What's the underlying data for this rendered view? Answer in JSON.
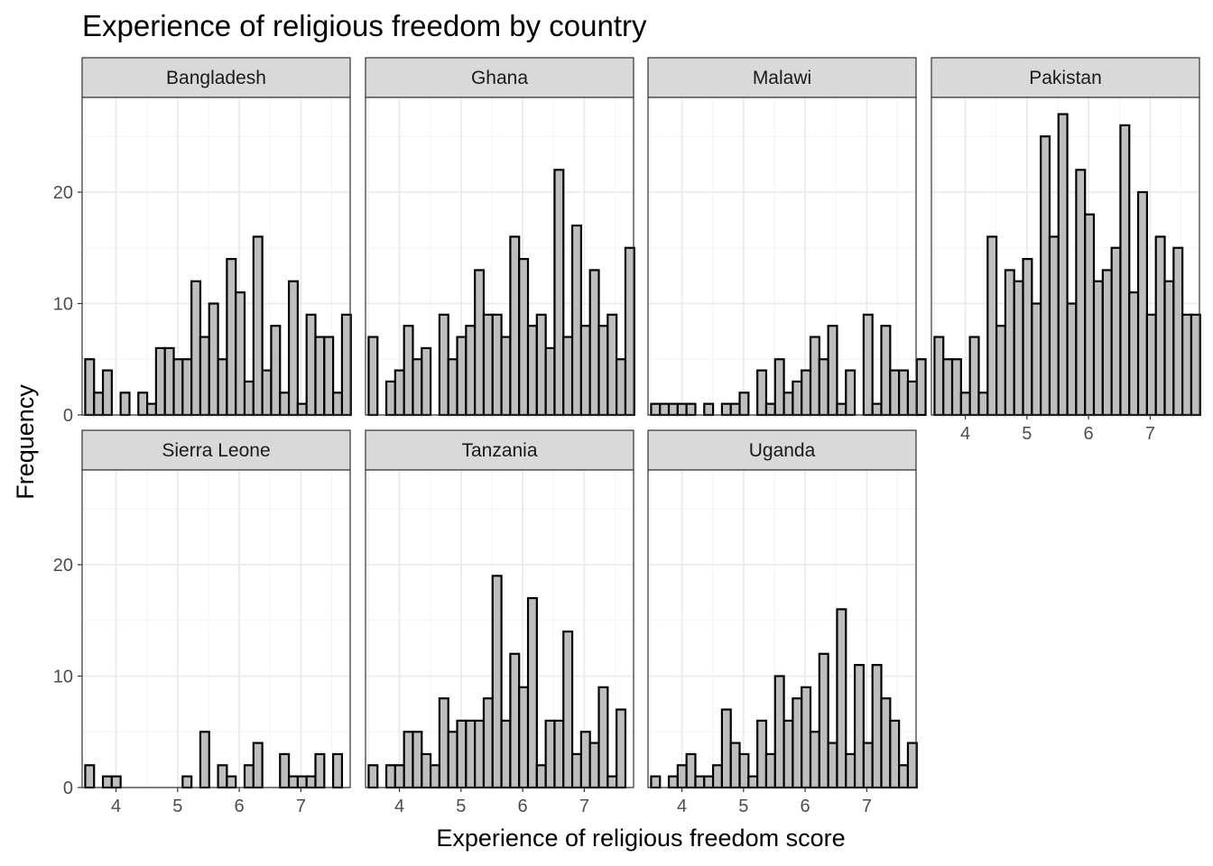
{
  "chart_data": {
    "type": "bar",
    "title": "Experience of religious freedom by country",
    "xlabel": "Experience of religious freedom score",
    "ylabel": "Frequency",
    "x_ticks": [
      "4",
      "5",
      "6",
      "7"
    ],
    "y_ticks": [
      "0",
      "10",
      "20"
    ],
    "xlim": [
      3.45,
      7.8
    ],
    "ylim": [
      0,
      28.5
    ],
    "bin_start": 3.5,
    "bin_width": 0.1437,
    "grid": true,
    "layout": "facet-wrap, 4 columns by 2 rows",
    "colors": {
      "bar_fill": "#bebebe",
      "bar_outline": "#000000",
      "strip_fill": "#d9d9d9"
    },
    "panels": [
      {
        "name": "Bangladesh",
        "values": [
          5,
          2,
          4,
          0,
          2,
          0,
          2,
          1,
          6,
          6,
          5,
          5,
          12,
          7,
          10,
          5,
          14,
          11,
          3,
          16,
          4,
          8,
          2,
          12,
          1,
          9,
          7,
          7,
          2,
          9
        ]
      },
      {
        "name": "Ghana",
        "values": [
          7,
          0,
          3,
          4,
          8,
          5,
          6,
          0,
          9,
          5,
          7,
          8,
          13,
          9,
          9,
          7,
          16,
          14,
          8,
          9,
          6,
          22,
          7,
          17,
          8,
          13,
          8,
          9,
          5,
          15
        ]
      },
      {
        "name": "Malawi",
        "values": [
          1,
          1,
          1,
          1,
          1,
          0,
          1,
          0,
          1,
          1,
          2,
          0,
          4,
          1,
          5,
          2,
          3,
          4,
          7,
          5,
          8,
          1,
          4,
          0,
          9,
          1,
          8,
          4,
          4,
          3,
          5
        ]
      },
      {
        "name": "Pakistan",
        "values": [
          7,
          5,
          5,
          2,
          7,
          2,
          16,
          8,
          13,
          12,
          14,
          10,
          25,
          16,
          27,
          10,
          22,
          18,
          12,
          13,
          15,
          26,
          11,
          20,
          9,
          16,
          12,
          15,
          9,
          9
        ]
      },
      {
        "name": "Sierra Leone",
        "values": [
          2,
          0,
          1,
          1,
          0,
          0,
          0,
          0,
          0,
          0,
          0,
          1,
          0,
          5,
          0,
          2,
          1,
          0,
          2,
          4,
          0,
          0,
          3,
          1,
          1,
          1,
          3,
          0,
          3
        ]
      },
      {
        "name": "Tanzania",
        "values": [
          2,
          0,
          2,
          2,
          5,
          5,
          3,
          2,
          8,
          5,
          6,
          6,
          6,
          8,
          19,
          6,
          12,
          9,
          17,
          2,
          6,
          6,
          14,
          3,
          5,
          4,
          9,
          1,
          7
        ]
      },
      {
        "name": "Uganda",
        "values": [
          1,
          0,
          1,
          2,
          3,
          1,
          1,
          2,
          7,
          4,
          3,
          1,
          6,
          3,
          10,
          6,
          8,
          9,
          5,
          12,
          4,
          16,
          3,
          11,
          4,
          11,
          8,
          6,
          2,
          4
        ]
      }
    ]
  }
}
